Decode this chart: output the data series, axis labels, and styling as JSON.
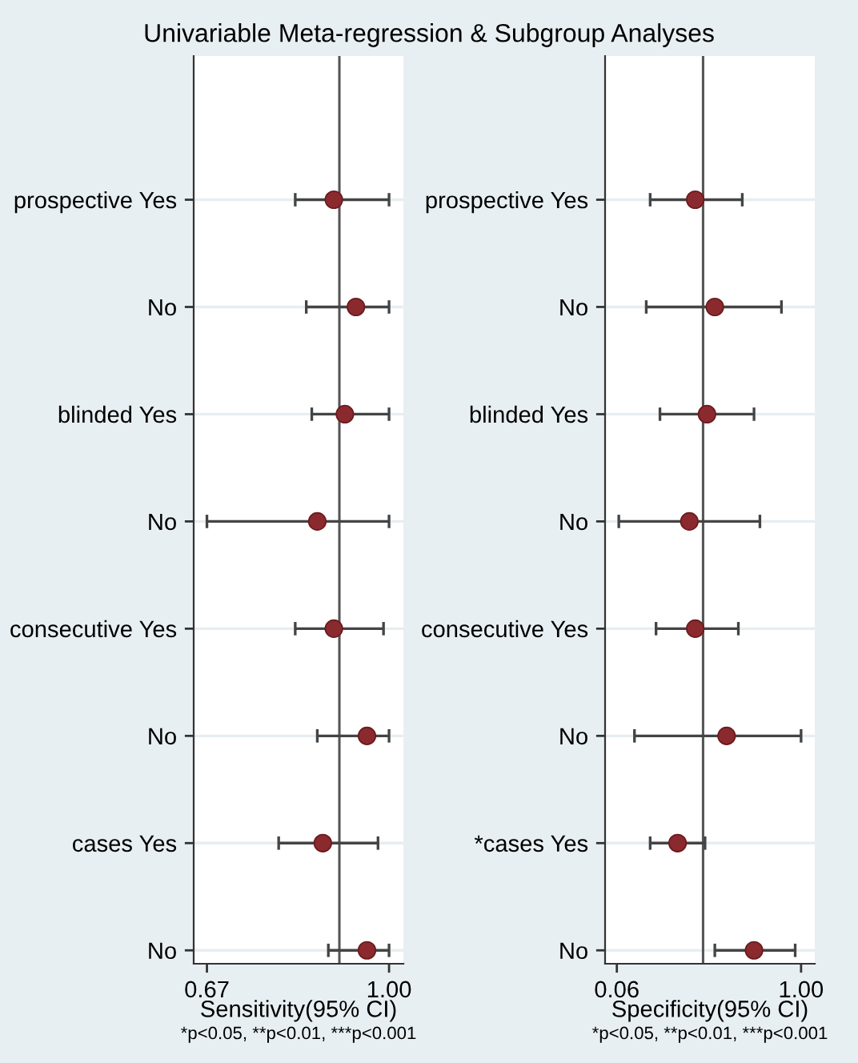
{
  "chart_data": [
    {
      "type": "scatter",
      "orientation": "horizontal",
      "title": "Univariable Meta-regression & Subgroup Analyses",
      "xlabel": "Sensitivity(95% CI)",
      "categories": [
        "prospective Yes",
        "No",
        "blinded Yes",
        "No",
        "consecutive Yes",
        "No",
        "cases Yes",
        "No"
      ],
      "series": [
        {
          "color": "#8b2a2e",
          "values": [
            0.9,
            0.94,
            0.92,
            0.87,
            0.9,
            0.96,
            0.88,
            0.96
          ],
          "errors": [
            [
              0.83,
              1.0
            ],
            [
              0.85,
              1.0
            ],
            [
              0.86,
              1.0
            ],
            [
              0.67,
              1.0
            ],
            [
              0.83,
              0.99
            ],
            [
              0.87,
              1.0
            ],
            [
              0.8,
              0.98
            ],
            [
              0.89,
              1.0
            ]
          ]
        }
      ],
      "xlim": [
        0.646,
        1.026
      ],
      "xticks": [
        {
          "value": 0.67,
          "label": "0.67"
        },
        {
          "value": 1.0,
          "label": "1.00"
        }
      ],
      "ref_lines": [
        {
          "axis": "x",
          "value": 0.91,
          "color": "#555555"
        }
      ],
      "grid": "y",
      "marker": "circle",
      "annotations": [
        "*p<0.05, **p<0.01, ***p<0.001"
      ]
    },
    {
      "type": "scatter",
      "orientation": "horizontal",
      "xlabel": "Specificity(95% CI)",
      "categories": [
        "prospective Yes",
        "No",
        "blinded Yes",
        "No",
        "consecutive Yes",
        "No",
        "*cases Yes",
        "No"
      ],
      "series": [
        {
          "color": "#8b2a2e",
          "values": [
            0.46,
            0.56,
            0.52,
            0.43,
            0.46,
            0.62,
            0.37,
            0.76
          ],
          "errors": [
            [
              0.23,
              0.7
            ],
            [
              0.21,
              0.9
            ],
            [
              0.28,
              0.76
            ],
            [
              0.07,
              0.79
            ],
            [
              0.26,
              0.68
            ],
            [
              0.15,
              1.0
            ],
            [
              0.23,
              0.51
            ],
            [
              0.56,
              0.97
            ]
          ]
        }
      ],
      "xlim": [
        0.0,
        1.07
      ],
      "xticks": [
        {
          "value": 0.06,
          "label": "0.06"
        },
        {
          "value": 1.0,
          "label": "1.00"
        }
      ],
      "ref_lines": [
        {
          "axis": "x",
          "value": 0.5,
          "color": "#555555"
        }
      ],
      "grid": "y",
      "marker": "circle",
      "annotations": [
        "*p<0.05, **p<0.01, ***p<0.001"
      ]
    }
  ]
}
